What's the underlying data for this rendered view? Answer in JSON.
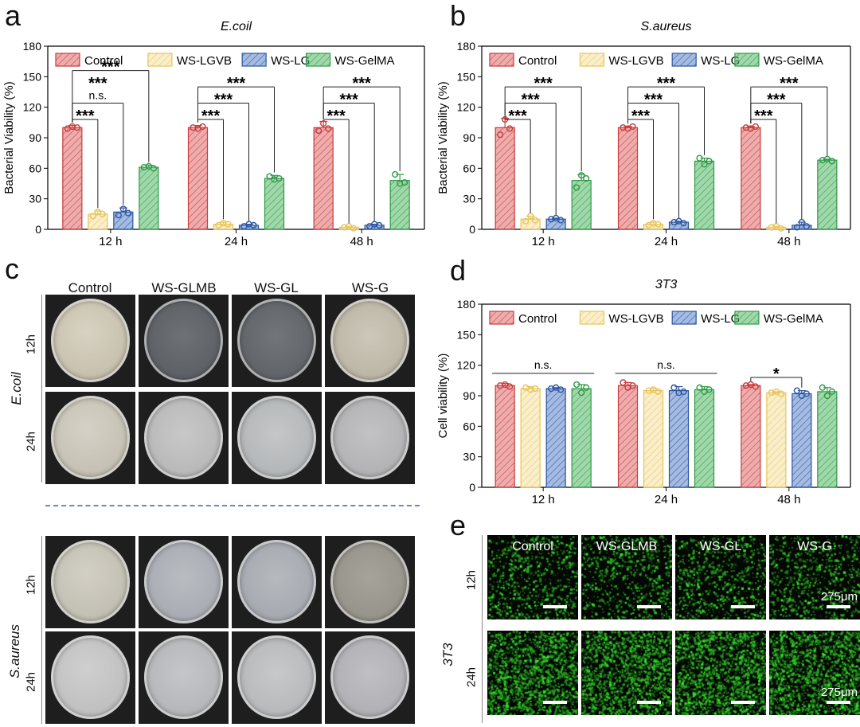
{
  "panel_letters": {
    "a": "a",
    "b": "b",
    "c": "c",
    "d": "d",
    "e": "e"
  },
  "colors": {
    "Control": "#e06a6a",
    "WS-LGVB": "#f6e2a2",
    "WS-LG": "#5a82c8",
    "WS-GelMA": "#54b866",
    "dot_Control": "#c83b3b",
    "dot_WS-LGVB": "#e8c45a",
    "dot_WS-LG": "#2a55a0",
    "dot_WS-GelMA": "#2e9a46",
    "divider": "#6b86c0"
  },
  "chart_data": [
    {
      "id": "a",
      "type": "bar",
      "title": "E.coil",
      "ylabel": "Bacterial Viability (%)",
      "xlabel": "",
      "ylim": [
        0,
        180
      ],
      "yticks": [
        "0",
        "30",
        "60",
        "90",
        "120",
        "150",
        "180"
      ],
      "categories": [
        "12 h",
        "24 h",
        "48 h"
      ],
      "legend_position": "top",
      "series": [
        {
          "name": "Control",
          "values": [
            100,
            100,
            100
          ],
          "errors": [
            2,
            2,
            6
          ],
          "points": [
            [
              99,
              101,
              100
            ],
            [
              100,
              99,
              101
            ],
            [
              97,
              104,
              99
            ]
          ]
        },
        {
          "name": "WS-LGVB",
          "values": [
            15,
            5,
            2
          ],
          "errors": [
            3,
            2,
            1
          ],
          "points": [
            [
              13,
              17,
              15
            ],
            [
              4,
              6,
              5
            ],
            [
              2,
              3,
              1
            ]
          ]
        },
        {
          "name": "WS-LG",
          "values": [
            17,
            4,
            4
          ],
          "errors": [
            4,
            1,
            1
          ],
          "points": [
            [
              14,
              20,
              16
            ],
            [
              3,
              5,
              4
            ],
            [
              3,
              5,
              4
            ]
          ]
        },
        {
          "name": "WS-GelMA",
          "values": [
            61,
            50,
            48
          ],
          "errors": [
            2,
            3,
            6
          ],
          "points": [
            [
              61,
              62,
              60
            ],
            [
              52,
              49,
              50
            ],
            [
              54,
              45,
              46
            ]
          ]
        }
      ],
      "annotations": [
        {
          "group": "12 h",
          "from": 0,
          "to": 1,
          "label": "***",
          "level": 1
        },
        {
          "group": "12 h",
          "from": 0,
          "to": 2,
          "label": "n.s.",
          "level": 2
        },
        {
          "group": "12 h",
          "from": 0,
          "to": 2,
          "label": "***",
          "level": 3,
          "text_only": true
        },
        {
          "group": "12 h",
          "from": 0,
          "to": 3,
          "label": "***",
          "level": 4
        },
        {
          "group": "24 h",
          "from": 0,
          "to": 1,
          "label": "***",
          "level": 1
        },
        {
          "group": "24 h",
          "from": 0,
          "to": 2,
          "label": "***",
          "level": 2
        },
        {
          "group": "24 h",
          "from": 0,
          "to": 3,
          "label": "***",
          "level": 3
        },
        {
          "group": "48 h",
          "from": 0,
          "to": 1,
          "label": "***",
          "level": 1
        },
        {
          "group": "48 h",
          "from": 0,
          "to": 2,
          "label": "***",
          "level": 2
        },
        {
          "group": "48 h",
          "from": 0,
          "to": 3,
          "label": "***",
          "level": 3
        }
      ]
    },
    {
      "id": "b",
      "type": "bar",
      "title": "S.aureus",
      "ylabel": "Bacterial Viability (%)",
      "xlabel": "",
      "ylim": [
        0,
        180
      ],
      "yticks": [
        "0",
        "30",
        "60",
        "90",
        "120",
        "150",
        "180"
      ],
      "categories": [
        "12 h",
        "24 h",
        "48 h"
      ],
      "legend_position": "top",
      "series": [
        {
          "name": "Control",
          "values": [
            100,
            100,
            100
          ],
          "errors": [
            9,
            1,
            1
          ],
          "points": [
            [
              93,
              108,
              99
            ],
            [
              100,
              99,
              101
            ],
            [
              100,
              99,
              101
            ]
          ]
        },
        {
          "name": "WS-LGVB",
          "values": [
            10,
            5,
            2
          ],
          "errors": [
            3,
            2,
            1
          ],
          "points": [
            [
              8,
              13,
              9
            ],
            [
              4,
              6,
              5
            ],
            [
              2,
              3,
              1
            ]
          ]
        },
        {
          "name": "WS-LG",
          "values": [
            10,
            7,
            4
          ],
          "errors": [
            1,
            1,
            3
          ],
          "points": [
            [
              10,
              11,
              9
            ],
            [
              7,
              8,
              6
            ],
            [
              2,
              7,
              3
            ]
          ]
        },
        {
          "name": "WS-GelMA",
          "values": [
            48,
            67,
            68
          ],
          "errors": [
            6,
            3,
            1
          ],
          "points": [
            [
              41,
              53,
              50
            ],
            [
              70,
              64,
              67
            ],
            [
              68,
              69,
              67
            ]
          ]
        }
      ],
      "annotations": [
        {
          "group": "12 h",
          "from": 0,
          "to": 1,
          "label": "***",
          "level": 1
        },
        {
          "group": "12 h",
          "from": 0,
          "to": 2,
          "label": "***",
          "level": 2
        },
        {
          "group": "12 h",
          "from": 0,
          "to": 3,
          "label": "***",
          "level": 3
        },
        {
          "group": "24 h",
          "from": 0,
          "to": 1,
          "label": "***",
          "level": 1
        },
        {
          "group": "24 h",
          "from": 0,
          "to": 2,
          "label": "***",
          "level": 2
        },
        {
          "group": "24 h",
          "from": 0,
          "to": 3,
          "label": "***",
          "level": 3
        },
        {
          "group": "48 h",
          "from": 0,
          "to": 1,
          "label": "***",
          "level": 1
        },
        {
          "group": "48 h",
          "from": 0,
          "to": 2,
          "label": "***",
          "level": 2
        },
        {
          "group": "48 h",
          "from": 0,
          "to": 3,
          "label": "***",
          "level": 3
        }
      ]
    },
    {
      "id": "d",
      "type": "bar",
      "title": "3T3",
      "ylabel": "Cell viability (%)",
      "xlabel": "",
      "ylim": [
        0,
        180
      ],
      "yticks": [
        "0",
        "30",
        "60",
        "90",
        "120",
        "150",
        "180"
      ],
      "categories": [
        "12 h",
        "24 h",
        "48 h"
      ],
      "legend_position": "top",
      "series": [
        {
          "name": "Control",
          "values": [
            100,
            100,
            100
          ],
          "errors": [
            2,
            3,
            1
          ],
          "points": [
            [
              100,
              101,
              99
            ],
            [
              103,
              98,
              100
            ],
            [
              100,
              101,
              99
            ]
          ]
        },
        {
          "name": "WS-LGVB",
          "values": [
            97,
            95,
            93
          ],
          "errors": [
            2,
            2,
            1
          ],
          "points": [
            [
              98,
              96,
              97
            ],
            [
              95,
              96,
              94
            ],
            [
              93,
              94,
              92
            ]
          ]
        },
        {
          "name": "WS-LG",
          "values": [
            97,
            95,
            92
          ],
          "errors": [
            1,
            4,
            3
          ],
          "points": [
            [
              97,
              98,
              96
            ],
            [
              98,
              93,
              94
            ],
            [
              95,
              90,
              92
            ]
          ]
        },
        {
          "name": "WS-GelMA",
          "values": [
            97,
            96,
            94
          ],
          "errors": [
            4,
            3,
            4
          ],
          "points": [
            [
              101,
              93,
              98
            ],
            [
              98,
              94,
              96
            ],
            [
              98,
              90,
              94
            ]
          ]
        }
      ],
      "annotations": [
        {
          "group": "12 h",
          "type": "span",
          "label": "n.s."
        },
        {
          "group": "24 h",
          "type": "span",
          "label": "n.s."
        },
        {
          "group": "48 h",
          "from": 0,
          "to": 2,
          "label": "*",
          "level": 1
        }
      ]
    }
  ],
  "panel_c": {
    "columns": [
      "Control",
      "WS-GLMB",
      "WS-GL",
      "WS-G"
    ],
    "groups": [
      {
        "name": "E.coil",
        "rows": [
          "12h",
          "24h"
        ]
      },
      {
        "name": "S.aureus",
        "rows": [
          "12h",
          "24h"
        ]
      }
    ]
  },
  "panel_e": {
    "columns": [
      "Control",
      "WS-GLMB",
      "WS-GL",
      "WS-G"
    ],
    "group": "3T3",
    "rows": [
      "12h",
      "24h"
    ],
    "scale_label": "275μm"
  }
}
